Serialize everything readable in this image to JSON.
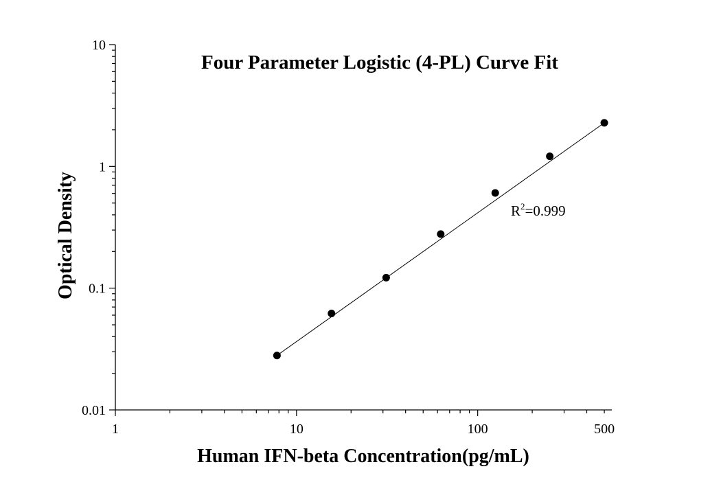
{
  "chart_data": {
    "type": "scatter",
    "title": "Four Parameter Logistic (4-PL) Curve Fit",
    "xlabel": "Human IFN-beta Concentration(pg/mL)",
    "ylabel": "Optical Density",
    "x_scale": "log",
    "y_scale": "log",
    "xlim": [
      1,
      550
    ],
    "ylim": [
      0.01,
      10
    ],
    "x_ticks": [
      1,
      10,
      100,
      500
    ],
    "x_tick_labels": [
      "1",
      "10",
      "100",
      "500"
    ],
    "y_ticks": [
      0.01,
      0.1,
      1,
      10
    ],
    "y_tick_labels": [
      "0.01",
      "0.1",
      "1",
      "10"
    ],
    "grid": false,
    "series": [
      {
        "x": [
          7.8,
          15.6,
          31.25,
          62.5,
          125,
          250,
          500
        ],
        "y": [
          0.028,
          0.062,
          0.122,
          0.278,
          0.605,
          1.21,
          2.28
        ],
        "marker": "circle",
        "color": "#000000"
      }
    ],
    "fit_line": {
      "x": [
        7.8,
        500
      ],
      "y": [
        0.028,
        2.28
      ],
      "color": "#000000"
    },
    "annotation": {
      "text_main": "R",
      "text_sup": "2",
      "text_rest": "=0.999"
    }
  }
}
